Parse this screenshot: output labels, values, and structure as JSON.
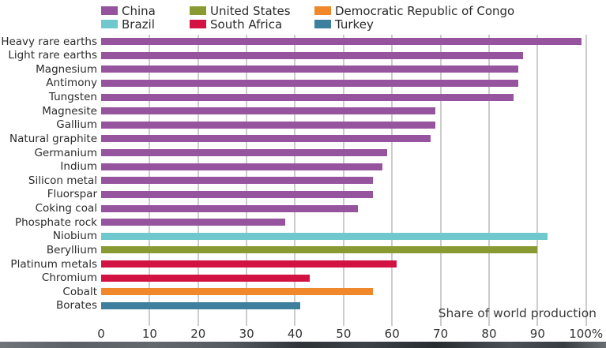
{
  "legend": {
    "items": [
      {
        "label": "China",
        "color": "#96549E"
      },
      {
        "label": "Brazil",
        "color": "#6FC8CD"
      },
      {
        "label": "United States",
        "color": "#8A9A33"
      },
      {
        "label": "South Africa",
        "color": "#D11242"
      },
      {
        "label": "Democratic Republic of Congo",
        "color": "#F0882B"
      },
      {
        "label": "Turkey",
        "color": "#3D7F9D"
      }
    ]
  },
  "chart_data": {
    "type": "bar",
    "orientation": "horizontal",
    "xlabel": "Share of world production",
    "xlim": [
      0,
      100
    ],
    "xticks": [
      "0",
      "10",
      "20",
      "30",
      "40",
      "50",
      "60",
      "70",
      "80",
      "90",
      "100%"
    ],
    "grid": "vertical",
    "legend_position": "top",
    "series_key": "country",
    "rows": [
      {
        "category": "Heavy rare earths",
        "country": "China",
        "value": 99
      },
      {
        "category": "Light rare earths",
        "country": "China",
        "value": 87
      },
      {
        "category": "Magnesium",
        "country": "China",
        "value": 86
      },
      {
        "category": "Antimony",
        "country": "China",
        "value": 86
      },
      {
        "category": "Tungsten",
        "country": "China",
        "value": 85
      },
      {
        "category": "Magnesite",
        "country": "China",
        "value": 69
      },
      {
        "category": "Gallium",
        "country": "China",
        "value": 69
      },
      {
        "category": "Natural graphite",
        "country": "China",
        "value": 68
      },
      {
        "category": "Germanium",
        "country": "China",
        "value": 59
      },
      {
        "category": "Indium",
        "country": "China",
        "value": 58
      },
      {
        "category": "Silicon metal",
        "country": "China",
        "value": 56
      },
      {
        "category": "Fluorspar",
        "country": "China",
        "value": 56
      },
      {
        "category": "Coking coal",
        "country": "China",
        "value": 53
      },
      {
        "category": "Phosphate rock",
        "country": "China",
        "value": 38
      },
      {
        "category": "Niobium",
        "country": "Brazil",
        "value": 92
      },
      {
        "category": "Beryllium",
        "country": "United States",
        "value": 90
      },
      {
        "category": "Platinum metals",
        "country": "South Africa",
        "value": 61
      },
      {
        "category": "Chromium",
        "country": "South Africa",
        "value": 43
      },
      {
        "category": "Cobalt",
        "country": "Democratic Republic of Congo",
        "value": 56
      },
      {
        "category": "Borates",
        "country": "Turkey",
        "value": 41
      }
    ]
  }
}
